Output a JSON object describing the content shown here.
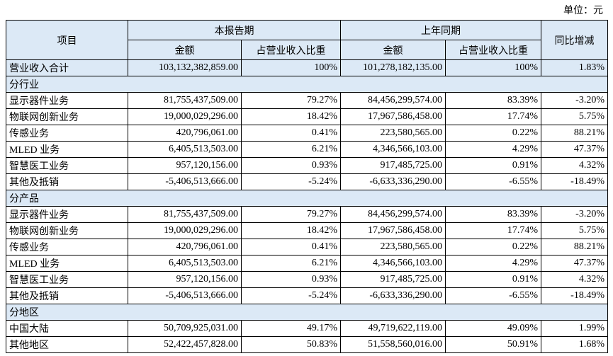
{
  "header": {
    "unit": "单位：元",
    "item": "项目",
    "current_period": "本报告期",
    "prior_period": "上年同期",
    "yoy": "同比增减",
    "amount": "金额",
    "share": "占营业收入比重",
    "amount_prior": "金额",
    "share_prior": "占营业收入比重"
  },
  "total": [
    "营业收入合计",
    "103,132,382,859.00",
    "100%",
    "101,278,182,135.00",
    "100%",
    "1.83%"
  ],
  "sections": [
    {
      "title": "分行业",
      "rows": [
        [
          "显示器件业务",
          "81,755,437,509.00",
          "79.27%",
          "84,456,299,574.00",
          "83.39%",
          "-3.20%"
        ],
        [
          "物联网创新业务",
          "19,000,029,296.00",
          "18.42%",
          "17,967,586,458.00",
          "17.74%",
          "5.75%"
        ],
        [
          "传感业务",
          "420,796,061.00",
          "0.41%",
          "223,580,565.00",
          "0.22%",
          "88.21%"
        ],
        [
          "MLED 业务",
          "6,405,513,503.00",
          "6.21%",
          "4,346,566,103.00",
          "4.29%",
          "47.37%"
        ],
        [
          "智慧医工业务",
          "957,120,156.00",
          "0.93%",
          "917,485,725.00",
          "0.91%",
          "4.32%"
        ],
        [
          "其他及抵销",
          "-5,406,513,666.00",
          "-5.24%",
          "-6,633,336,290.00",
          "-6.55%",
          "-18.49%"
        ]
      ]
    },
    {
      "title": "分产品",
      "rows": [
        [
          "显示器件业务",
          "81,755,437,509.00",
          "79.27%",
          "84,456,299,574.00",
          "83.39%",
          "-3.20%"
        ],
        [
          "物联网创新业务",
          "19,000,029,296.00",
          "18.42%",
          "17,967,586,458.00",
          "17.74%",
          "5.75%"
        ],
        [
          "传感业务",
          "420,796,061.00",
          "0.41%",
          "223,580,565.00",
          "0.22%",
          "88.21%"
        ],
        [
          "MLED 业务",
          "6,405,513,503.00",
          "6.21%",
          "4,346,566,103.00",
          "4.29%",
          "47.37%"
        ],
        [
          "智慧医工业务",
          "957,120,156.00",
          "0.93%",
          "917,485,725.00",
          "0.91%",
          "4.32%"
        ],
        [
          "其他及抵销",
          "-5,406,513,666.00",
          "-5.24%",
          "-6,633,336,290.00",
          "-6.55%",
          "-18.49%"
        ]
      ]
    },
    {
      "title": "分地区",
      "rows": [
        [
          "中国大陆",
          "50,709,925,031.00",
          "49.17%",
          "49,719,622,119.00",
          "49.09%",
          "1.99%"
        ],
        [
          "其他地区",
          "52,422,457,828.00",
          "50.83%",
          "51,558,560,016.00",
          "50.91%",
          "1.68%"
        ]
      ]
    }
  ]
}
